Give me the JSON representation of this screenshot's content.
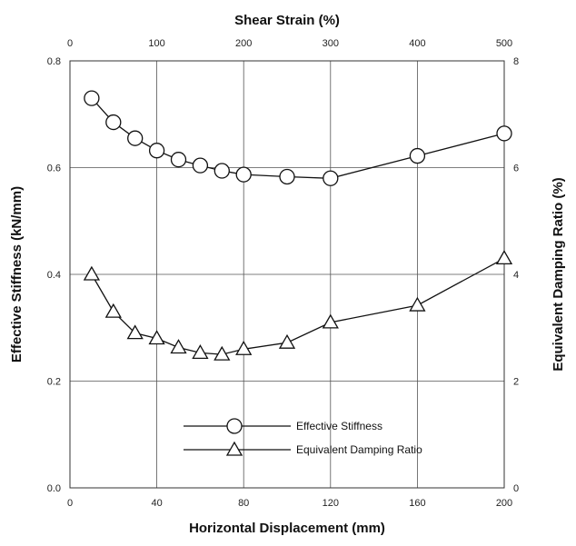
{
  "chart_data": {
    "type": "line",
    "title": "",
    "xlabel": "Horizontal Displacement (mm)",
    "x_top_label": "Shear Strain (%)",
    "ylabel_left": "Effective Stiffness (kN/mm)",
    "ylabel_right": "Equivalent Damping Ratio (%)",
    "xlim": [
      0,
      200
    ],
    "x_top_lim": [
      0,
      500
    ],
    "ylim_left": [
      0,
      0.8
    ],
    "ylim_right": [
      0,
      8
    ],
    "x_ticks": [
      "0",
      "40",
      "80",
      "120",
      "160",
      "200"
    ],
    "x_top_ticks": [
      "0",
      "100",
      "200",
      "300",
      "400",
      "500"
    ],
    "y_left_ticks": [
      "0.0",
      "0.2",
      "0.4",
      "0.6",
      "0.8"
    ],
    "y_right_ticks": [
      "0",
      "2",
      "4",
      "6",
      "8"
    ],
    "grid": true,
    "legend_position": "bottom-center",
    "series": [
      {
        "name": "Effective Stiffness",
        "axis": "left",
        "marker": "circle",
        "x": [
          10,
          20,
          30,
          40,
          50,
          60,
          70,
          80,
          100,
          120,
          160,
          200
        ],
        "y": [
          0.73,
          0.685,
          0.655,
          0.632,
          0.615,
          0.604,
          0.594,
          0.587,
          0.583,
          0.58,
          0.622,
          0.664
        ]
      },
      {
        "name": "Equivalent Damping Ratio",
        "axis": "right",
        "marker": "triangle",
        "x": [
          10,
          20,
          30,
          40,
          50,
          60,
          70,
          80,
          100,
          120,
          160,
          200
        ],
        "y": [
          4.0,
          3.3,
          2.9,
          2.8,
          2.63,
          2.53,
          2.5,
          2.6,
          2.72,
          3.1,
          3.42,
          4.3
        ]
      }
    ]
  }
}
